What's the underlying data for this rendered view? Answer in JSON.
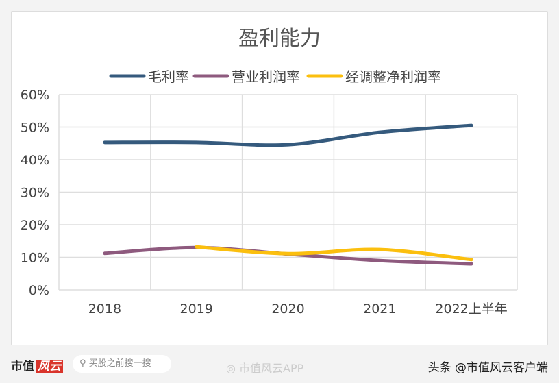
{
  "chart_data": {
    "type": "line",
    "title": "盈利能力",
    "categories": [
      "2018",
      "2019",
      "2020",
      "2021",
      "2022上半年"
    ],
    "ylim": [
      0,
      60
    ],
    "yticks": [
      "0%",
      "10%",
      "20%",
      "30%",
      "40%",
      "50%",
      "60%"
    ],
    "grid": true,
    "legend_position": "top",
    "series": [
      {
        "name": "毛利率",
        "color": "#355a7d",
        "values": [
          45.3,
          45.3,
          44.6,
          48.4,
          50.5
        ]
      },
      {
        "name": "营业利润率",
        "color": "#8e5a7e",
        "values": [
          11.2,
          13.0,
          11.0,
          9.0,
          8.0
        ]
      },
      {
        "name": "经调整净利润率",
        "color": "#fbbf0e",
        "values": [
          null,
          13.2,
          11.1,
          12.4,
          9.3
        ]
      }
    ]
  },
  "watermark": "市值风云",
  "footer": {
    "logo_text": "市值",
    "logo_mark": "风云",
    "search_placeholder": "买股之前搜一搜",
    "weibo": "市值风云APP",
    "toutiao": "头条 @市值风云客户端"
  }
}
